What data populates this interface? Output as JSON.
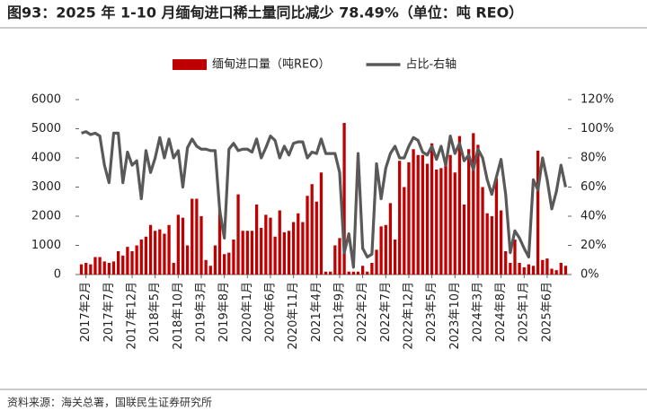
{
  "chart_data": {
    "type": "combo",
    "title": "图93：2025 年 1-10 月缅甸进口稀土量同比减少 78.49%（单位：吨 REO）",
    "source": "资料来源：海关总署，国联民生证券研究所",
    "categories": [
      null,
      "2017年2月",
      null,
      null,
      null,
      null,
      "2017年7月",
      null,
      null,
      null,
      null,
      "2017年12月",
      null,
      null,
      null,
      null,
      "2018年5月",
      null,
      null,
      null,
      null,
      "2018年10月",
      null,
      null,
      null,
      null,
      "2019年3月",
      null,
      null,
      null,
      null,
      "2019年8月",
      null,
      null,
      null,
      null,
      "2020年1月",
      null,
      null,
      null,
      null,
      "2020年6月",
      null,
      null,
      null,
      null,
      "2020年11月",
      null,
      null,
      null,
      null,
      "2021年4月",
      null,
      null,
      null,
      null,
      "2021年9月",
      null,
      null,
      null,
      null,
      "2022年2月",
      null,
      null,
      null,
      null,
      "2022年7月",
      null,
      null,
      null,
      null,
      "2022年12月",
      null,
      null,
      null,
      null,
      "2023年5月",
      null,
      null,
      null,
      null,
      "2023年10月",
      null,
      null,
      null,
      null,
      "2024年3月",
      null,
      null,
      null,
      null,
      "2024年8月",
      null,
      null,
      null,
      null,
      "2025年1月",
      null,
      null,
      null,
      null,
      "2025年6月",
      null,
      null,
      null,
      null
    ],
    "series": [
      {
        "name": "缅甸进口量（吨REO）",
        "type": "bar",
        "color": "#c00000",
        "values": [
          350,
          400,
          350,
          600,
          600,
          450,
          400,
          450,
          800,
          650,
          950,
          800,
          1000,
          1200,
          1300,
          1700,
          1500,
          1550,
          1400,
          1700,
          400,
          2050,
          1950,
          1000,
          2600,
          2600,
          2000,
          500,
          300,
          1000,
          2250,
          700,
          750,
          1200,
          2750,
          1500,
          1500,
          1500,
          2400,
          1600,
          2050,
          1950,
          1300,
          2200,
          1450,
          1500,
          1800,
          2100,
          1800,
          2700,
          3100,
          2500,
          3500,
          100,
          100,
          1000,
          1250,
          5200,
          100,
          100,
          100,
          300,
          100,
          400,
          850,
          1650,
          1700,
          2450,
          1200,
          3900,
          3000,
          3850,
          4300,
          4100,
          4100,
          3800,
          4500,
          3600,
          3650,
          3900,
          4100,
          3500,
          4750,
          2400,
          4300,
          4850,
          4450,
          3000,
          2100,
          2000,
          3300,
          2200,
          800,
          400,
          1200,
          400,
          250,
          350,
          300,
          4250,
          500,
          550,
          200,
          150,
          400,
          300
        ]
      },
      {
        "name": "占比-右轴",
        "type": "line",
        "axis": "y2",
        "color": "#595959",
        "values": [
          97,
          98,
          96,
          97,
          95,
          75,
          63,
          97,
          97,
          63,
          84,
          75,
          78,
          52,
          85,
          70,
          80,
          94,
          80,
          93,
          80,
          85,
          60,
          87,
          93,
          88,
          86,
          86,
          85,
          85,
          44,
          25,
          86,
          90,
          85,
          86,
          86,
          84,
          93,
          80,
          87,
          95,
          92,
          80,
          88,
          82,
          90,
          91,
          91,
          80,
          84,
          83,
          93,
          83,
          83,
          83,
          70,
          15,
          28,
          5,
          83,
          18,
          12,
          14,
          76,
          52,
          73,
          83,
          88,
          80,
          80,
          88,
          94,
          92,
          84,
          82,
          88,
          79,
          88,
          75,
          95,
          83,
          90,
          78,
          82,
          72,
          86,
          80,
          65,
          55,
          67,
          79,
          55,
          15,
          30,
          25,
          18,
          12,
          65,
          58,
          80,
          65,
          45,
          57,
          75,
          60
        ]
      }
    ],
    "ylim": [
      0,
      6000
    ],
    "yticks": [
      0,
      1000,
      2000,
      3000,
      4000,
      5000,
      6000
    ],
    "y2lim": [
      0,
      120
    ],
    "y2ticks": [
      {
        "value": 0,
        "label": "0%"
      },
      {
        "value": 20,
        "label": "20%"
      },
      {
        "value": 40,
        "label": "40%"
      },
      {
        "value": 60,
        "label": "60%"
      },
      {
        "value": 80,
        "label": "80%"
      },
      {
        "value": 100,
        "label": "100%"
      },
      {
        "value": 120,
        "label": "120%"
      }
    ],
    "legend": "top"
  }
}
